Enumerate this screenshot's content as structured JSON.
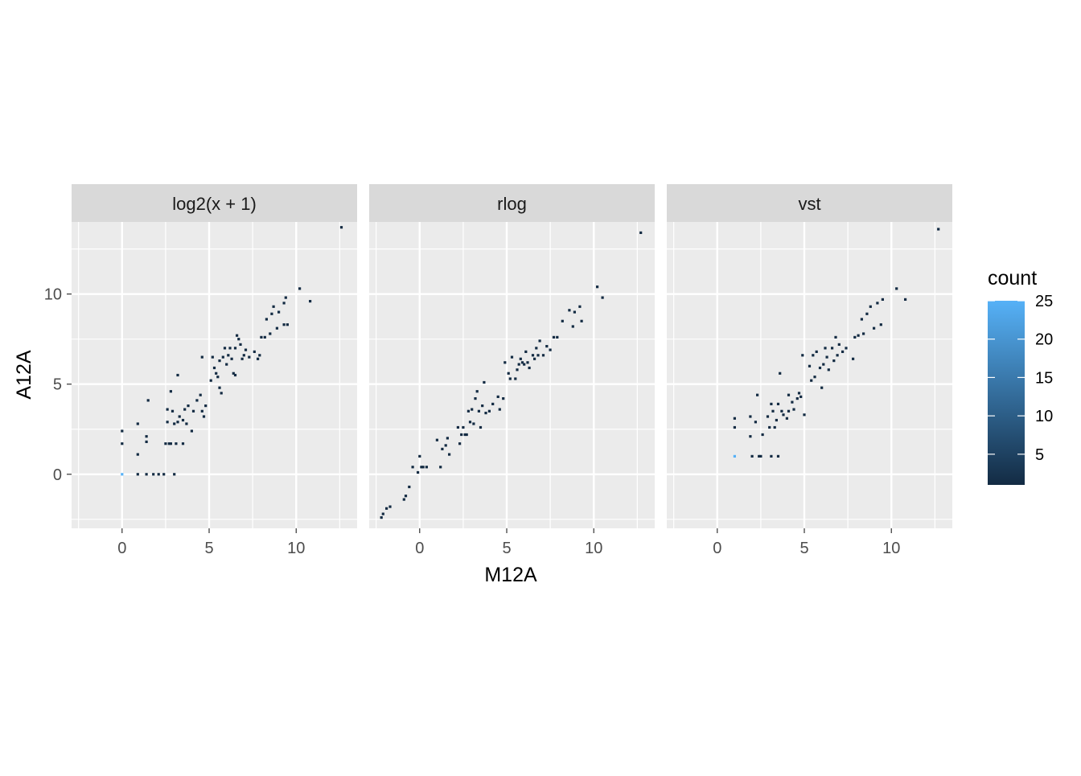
{
  "chart_data": {
    "type": "heatmap",
    "subtype": "faceted 2D bin count (hex/bin scatter)",
    "xlabel": "M12A",
    "ylabel": "A12A",
    "grid": true,
    "legend": {
      "title": "count",
      "placement": "right",
      "range": [
        1,
        25
      ],
      "ticks": [
        5,
        10,
        15,
        20,
        25
      ],
      "color_low": "#132B43",
      "color_high": "#56B1F7"
    },
    "panels": [
      {
        "title": "log2(x + 1)",
        "xlim": [
          -2.9,
          13.5
        ],
        "ylim": [
          -3.0,
          14.0
        ],
        "x_ticks": [
          "0",
          "5",
          "10"
        ],
        "y_ticks": [
          "0",
          "5",
          "10"
        ],
        "points": [
          [
            0,
            0,
            25
          ],
          [
            0,
            1.7,
            1
          ],
          [
            0,
            2.4,
            1
          ],
          [
            0.9,
            0,
            1
          ],
          [
            0.9,
            1.1,
            1
          ],
          [
            0.9,
            2.8,
            1
          ],
          [
            1.4,
            0,
            1
          ],
          [
            1.4,
            1.8,
            1
          ],
          [
            1.4,
            2.1,
            1
          ],
          [
            1.5,
            4.1,
            1
          ],
          [
            1.8,
            0,
            1
          ],
          [
            2.1,
            0,
            1
          ],
          [
            2.4,
            0,
            1
          ],
          [
            2.5,
            1.7,
            1
          ],
          [
            2.6,
            2.9,
            1
          ],
          [
            2.6,
            3.6,
            1
          ],
          [
            2.7,
            1.7,
            1
          ],
          [
            2.8,
            4.6,
            1
          ],
          [
            2.8,
            1.7,
            1
          ],
          [
            2.9,
            3.5,
            1
          ],
          [
            3.0,
            0,
            1
          ],
          [
            3.0,
            2.8,
            1
          ],
          [
            3.1,
            1.7,
            1
          ],
          [
            3.2,
            5.5,
            1
          ],
          [
            3.2,
            2.9,
            1
          ],
          [
            3.3,
            3.2,
            1
          ],
          [
            3.5,
            3.0,
            1
          ],
          [
            3.5,
            1.7,
            1
          ],
          [
            3.6,
            3.6,
            1
          ],
          [
            3.7,
            2.8,
            1
          ],
          [
            3.8,
            3.8,
            1
          ],
          [
            4.0,
            2.4,
            1
          ],
          [
            4.1,
            3.5,
            1
          ],
          [
            4.3,
            4.1,
            1
          ],
          [
            4.5,
            4.4,
            1
          ],
          [
            4.6,
            3.5,
            1
          ],
          [
            4.6,
            6.5,
            1
          ],
          [
            4.7,
            3.2,
            1
          ],
          [
            4.8,
            3.8,
            1
          ],
          [
            5.1,
            5.2,
            1
          ],
          [
            5.2,
            6.5,
            1
          ],
          [
            5.3,
            5.9,
            1
          ],
          [
            5.4,
            5.6,
            1
          ],
          [
            5.5,
            5.4,
            1
          ],
          [
            5.6,
            6.3,
            1
          ],
          [
            5.6,
            4.8,
            1
          ],
          [
            5.7,
            4.5,
            1
          ],
          [
            5.8,
            6.5,
            1
          ],
          [
            5.9,
            7.0,
            1
          ],
          [
            6.0,
            6.1,
            1
          ],
          [
            6.1,
            6.6,
            1
          ],
          [
            6.2,
            7.0,
            1
          ],
          [
            6.3,
            6.4,
            1
          ],
          [
            6.4,
            5.6,
            1
          ],
          [
            6.5,
            5.5,
            1
          ],
          [
            6.5,
            7.0,
            1
          ],
          [
            6.6,
            7.7,
            1
          ],
          [
            6.7,
            7.5,
            1
          ],
          [
            6.8,
            7.2,
            1
          ],
          [
            6.9,
            6.4,
            1
          ],
          [
            7.0,
            6.6,
            1
          ],
          [
            7.1,
            6.9,
            1
          ],
          [
            7.3,
            6.5,
            1
          ],
          [
            7.6,
            6.8,
            1
          ],
          [
            7.8,
            6.4,
            1
          ],
          [
            7.9,
            6.6,
            1
          ],
          [
            8.0,
            7.6,
            1
          ],
          [
            8.2,
            7.6,
            1
          ],
          [
            8.3,
            8.6,
            1
          ],
          [
            8.5,
            7.8,
            1
          ],
          [
            8.6,
            8.9,
            1
          ],
          [
            8.7,
            9.3,
            1
          ],
          [
            8.9,
            8.1,
            1
          ],
          [
            9.0,
            9.0,
            1
          ],
          [
            9.3,
            8.3,
            1
          ],
          [
            9.3,
            9.5,
            1
          ],
          [
            9.4,
            9.8,
            1
          ],
          [
            9.5,
            8.3,
            1
          ],
          [
            10.2,
            10.3,
            1
          ],
          [
            10.8,
            9.6,
            1
          ],
          [
            12.6,
            13.7,
            1
          ]
        ]
      },
      {
        "title": "rlog",
        "xlim": [
          -2.9,
          13.5
        ],
        "ylim": [
          -3.0,
          14.0
        ],
        "x_ticks": [
          "0",
          "5",
          "10"
        ],
        "y_ticks": [],
        "points": [
          [
            -2.2,
            -2.4,
            1
          ],
          [
            -2.1,
            -2.2,
            1
          ],
          [
            -1.9,
            -1.9,
            1
          ],
          [
            -1.7,
            -1.8,
            1
          ],
          [
            -0.9,
            -1.4,
            1
          ],
          [
            -0.8,
            -1.2,
            1
          ],
          [
            -0.6,
            -0.7,
            1
          ],
          [
            -0.4,
            0.4,
            1
          ],
          [
            -0.1,
            0.1,
            1
          ],
          [
            0,
            1.0,
            1
          ],
          [
            0.1,
            0.4,
            1
          ],
          [
            0.2,
            0.4,
            1
          ],
          [
            0.4,
            0.4,
            1
          ],
          [
            1.0,
            1.9,
            1
          ],
          [
            1.2,
            0.4,
            1
          ],
          [
            1.3,
            1.4,
            1
          ],
          [
            1.5,
            1.6,
            1
          ],
          [
            1.6,
            2.0,
            1
          ],
          [
            1.7,
            1.1,
            1
          ],
          [
            2.2,
            2.6,
            1
          ],
          [
            2.3,
            1.7,
            1
          ],
          [
            2.4,
            2.2,
            1
          ],
          [
            2.5,
            2.6,
            1
          ],
          [
            2.6,
            2.2,
            1
          ],
          [
            2.7,
            2.2,
            1
          ],
          [
            2.8,
            3.5,
            1
          ],
          [
            2.9,
            2.9,
            1
          ],
          [
            3.0,
            3.6,
            1
          ],
          [
            3.1,
            2.8,
            1
          ],
          [
            3.2,
            4.2,
            1
          ],
          [
            3.3,
            4.6,
            1
          ],
          [
            3.4,
            3.5,
            1
          ],
          [
            3.5,
            2.6,
            1
          ],
          [
            3.6,
            3.8,
            1
          ],
          [
            3.7,
            5.1,
            1
          ],
          [
            3.8,
            3.4,
            1
          ],
          [
            4.0,
            3.5,
            1
          ],
          [
            4.2,
            3.9,
            1
          ],
          [
            4.5,
            4.3,
            1
          ],
          [
            4.6,
            3.6,
            1
          ],
          [
            4.8,
            4.2,
            1
          ],
          [
            4.9,
            6.2,
            1
          ],
          [
            5.1,
            5.6,
            1
          ],
          [
            5.2,
            5.3,
            1
          ],
          [
            5.3,
            6.5,
            1
          ],
          [
            5.5,
            5.3,
            1
          ],
          [
            5.6,
            5.8,
            1
          ],
          [
            5.7,
            6.1,
            1
          ],
          [
            5.8,
            6.4,
            1
          ],
          [
            5.9,
            6.2,
            1
          ],
          [
            6.0,
            6.1,
            1
          ],
          [
            6.1,
            6.8,
            1
          ],
          [
            6.2,
            6.2,
            1
          ],
          [
            6.3,
            5.9,
            1
          ],
          [
            6.5,
            6.6,
            1
          ],
          [
            6.6,
            6.4,
            1
          ],
          [
            6.7,
            7.0,
            1
          ],
          [
            6.8,
            6.6,
            1
          ],
          [
            6.9,
            7.4,
            1
          ],
          [
            7.1,
            6.6,
            1
          ],
          [
            7.3,
            7.1,
            1
          ],
          [
            7.5,
            6.9,
            1
          ],
          [
            7.7,
            7.6,
            1
          ],
          [
            7.9,
            7.6,
            1
          ],
          [
            8.2,
            8.5,
            1
          ],
          [
            8.6,
            9.1,
            1
          ],
          [
            8.8,
            8.2,
            1
          ],
          [
            8.9,
            9.0,
            1
          ],
          [
            9.2,
            9.3,
            1
          ],
          [
            9.3,
            8.5,
            1
          ],
          [
            10.2,
            10.4,
            1
          ],
          [
            10.5,
            9.8,
            1
          ],
          [
            12.7,
            13.4,
            1
          ]
        ]
      },
      {
        "title": "vst",
        "xlim": [
          -2.9,
          13.5
        ],
        "ylim": [
          -3.0,
          14.0
        ],
        "x_ticks": [
          "0",
          "5",
          "10"
        ],
        "y_ticks": [],
        "points": [
          [
            1.0,
            1.0,
            25
          ],
          [
            1.0,
            2.6,
            1
          ],
          [
            1.0,
            3.1,
            1
          ],
          [
            1.9,
            3.2,
            1
          ],
          [
            1.9,
            2.1,
            1
          ],
          [
            2.0,
            1.0,
            1
          ],
          [
            2.2,
            2.9,
            1
          ],
          [
            2.3,
            4.4,
            1
          ],
          [
            2.4,
            1.0,
            1
          ],
          [
            2.5,
            1.0,
            1
          ],
          [
            2.6,
            2.2,
            1
          ],
          [
            2.9,
            3.2,
            1
          ],
          [
            3.0,
            2.6,
            1
          ],
          [
            3.1,
            1.0,
            1
          ],
          [
            3.1,
            3.9,
            1
          ],
          [
            3.2,
            3.5,
            1
          ],
          [
            3.3,
            2.6,
            1
          ],
          [
            3.4,
            3.0,
            1
          ],
          [
            3.5,
            1.0,
            1
          ],
          [
            3.5,
            3.9,
            1
          ],
          [
            3.6,
            5.6,
            1
          ],
          [
            3.7,
            3.5,
            1
          ],
          [
            3.8,
            3.3,
            1
          ],
          [
            4.0,
            3.1,
            1
          ],
          [
            4.1,
            3.5,
            1
          ],
          [
            4.1,
            4.4,
            1
          ],
          [
            4.3,
            4.0,
            1
          ],
          [
            4.4,
            3.6,
            1
          ],
          [
            4.6,
            4.2,
            1
          ],
          [
            4.7,
            4.5,
            1
          ],
          [
            4.8,
            4.3,
            1
          ],
          [
            4.9,
            6.6,
            1
          ],
          [
            5.0,
            3.3,
            1
          ],
          [
            5.3,
            6.0,
            1
          ],
          [
            5.4,
            5.2,
            1
          ],
          [
            5.5,
            6.6,
            1
          ],
          [
            5.6,
            5.4,
            1
          ],
          [
            5.7,
            6.8,
            1
          ],
          [
            5.9,
            5.9,
            1
          ],
          [
            6.0,
            4.8,
            1
          ],
          [
            6.1,
            6.1,
            1
          ],
          [
            6.2,
            7.0,
            1
          ],
          [
            6.3,
            6.5,
            1
          ],
          [
            6.4,
            5.8,
            1
          ],
          [
            6.6,
            7.0,
            1
          ],
          [
            6.7,
            6.3,
            1
          ],
          [
            6.8,
            7.6,
            1
          ],
          [
            6.9,
            6.6,
            1
          ],
          [
            7.0,
            7.2,
            1
          ],
          [
            7.2,
            6.8,
            1
          ],
          [
            7.4,
            7.0,
            1
          ],
          [
            7.8,
            6.4,
            1
          ],
          [
            7.9,
            7.6,
            1
          ],
          [
            8.1,
            7.7,
            1
          ],
          [
            8.3,
            8.6,
            1
          ],
          [
            8.4,
            7.8,
            1
          ],
          [
            8.6,
            8.9,
            1
          ],
          [
            8.8,
            9.3,
            1
          ],
          [
            9.0,
            8.1,
            1
          ],
          [
            9.2,
            9.5,
            1
          ],
          [
            9.4,
            8.3,
            1
          ],
          [
            9.5,
            9.7,
            1
          ],
          [
            10.3,
            10.3,
            1
          ],
          [
            10.8,
            9.7,
            1
          ],
          [
            12.7,
            13.6,
            1
          ]
        ]
      }
    ]
  }
}
